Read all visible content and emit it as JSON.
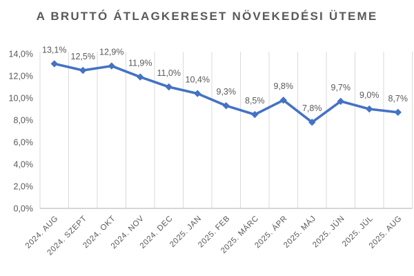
{
  "header": {
    "title": "A BRUTTÓ ÁTLAGKERESET NÖVEKEDÉSI ÜTEME"
  },
  "chart_data": {
    "type": "line",
    "title": "A BRUTTÓ ÁTLAGKERESET NÖVEKEDÉSI ÜTEME",
    "categories": [
      "2024. AUG",
      "2024. SZEPT",
      "2024. OKT",
      "2024. NOV",
      "2024. DEC",
      "2025. JAN",
      "2025. FEB",
      "2025. MÁRC",
      "2025. ÁPR",
      "2025. MÁJ",
      "2025. JÚN",
      "2025. JÚL",
      "2025. AUG"
    ],
    "values": [
      13.1,
      12.5,
      12.9,
      11.9,
      11.0,
      10.4,
      9.3,
      8.5,
      9.8,
      7.8,
      9.7,
      9.0,
      8.7
    ],
    "data_labels": [
      "13,1%",
      "12,5%",
      "12,9%",
      "11,9%",
      "11,0%",
      "10,4%",
      "9,3%",
      "8,5%",
      "9,8%",
      "7,8%",
      "9,7%",
      "9,0%",
      "8,7%"
    ],
    "y_ticks": [
      {
        "value": 0,
        "label": "0,0%"
      },
      {
        "value": 2,
        "label": "2,0%"
      },
      {
        "value": 4,
        "label": "4,0%"
      },
      {
        "value": 6,
        "label": "6,0%"
      },
      {
        "value": 8,
        "label": "8,0%"
      },
      {
        "value": 10,
        "label": "10,0%"
      },
      {
        "value": 12,
        "label": "12,0%"
      },
      {
        "value": 14,
        "label": "14,0%"
      }
    ],
    "ylim": [
      0,
      14
    ],
    "xlabel": "",
    "ylabel": "",
    "legend": "none",
    "grid": "vertical-only",
    "marker": "diamond",
    "colors": {
      "line": "#4472C4",
      "marker": "#4472C4",
      "gridline": "#D9D9D9",
      "axis_line": "#BFBFBF",
      "title_text": "#595959",
      "label_text": "#595959",
      "tick_text": "#595959",
      "background": "#FFFFFF"
    }
  }
}
